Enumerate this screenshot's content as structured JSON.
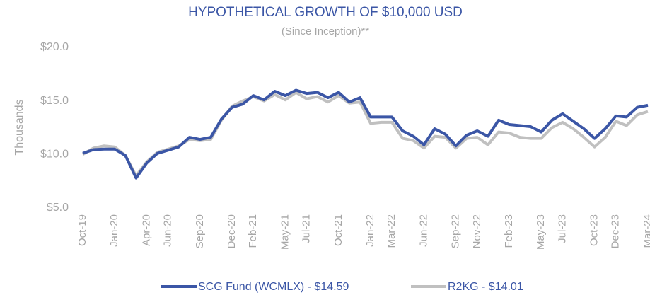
{
  "chart_data": {
    "type": "line",
    "title": "HYPOTHETICAL  GROWTH  OF $10,000  USD",
    "subtitle": "(Since Inception)**",
    "y_label": "Thousands",
    "categories": [
      "Oct-19",
      null,
      null,
      "Jan-20",
      null,
      null,
      "Apr-20",
      null,
      "Jun-20",
      null,
      null,
      "Sep-20",
      null,
      null,
      "Dec-20",
      null,
      "Feb-21",
      null,
      null,
      "May-21",
      null,
      "Jul-21",
      null,
      null,
      "Oct-21",
      null,
      null,
      "Jan-22",
      null,
      "Mar-22",
      null,
      null,
      "Jun-22",
      null,
      null,
      "Sep-22",
      null,
      "Nov-22",
      null,
      null,
      "Feb-23",
      null,
      null,
      "May-23",
      null,
      "Jul-23",
      null,
      null,
      "Oct-23",
      null,
      "Dec-23",
      null,
      null,
      "Mar-24"
    ],
    "series": [
      {
        "name": "SCG Fund (WCMLX) - $14.59",
        "color": "#3b56a6",
        "values": [
          10.1,
          10.45,
          10.5,
          10.5,
          9.9,
          7.8,
          9.2,
          10.1,
          10.4,
          10.7,
          11.6,
          11.4,
          11.6,
          13.3,
          14.4,
          14.7,
          15.5,
          15.1,
          15.9,
          15.5,
          16.0,
          15.7,
          15.8,
          15.3,
          15.8,
          14.9,
          15.3,
          13.5,
          13.5,
          13.5,
          12.2,
          11.7,
          10.9,
          12.4,
          11.9,
          10.8,
          11.8,
          12.2,
          11.7,
          13.2,
          12.8,
          12.7,
          12.6,
          12.1,
          13.2,
          13.8,
          13.1,
          12.4,
          11.5,
          12.4,
          13.6,
          13.5,
          14.4,
          14.59
        ]
      },
      {
        "name": "R2KG - $14.01",
        "color": "#c0c0c0",
        "values": [
          10.0,
          10.6,
          10.8,
          10.7,
          9.9,
          8.0,
          9.3,
          10.2,
          10.5,
          10.8,
          11.4,
          11.3,
          11.4,
          13.2,
          14.5,
          15.0,
          15.4,
          15.0,
          15.6,
          15.1,
          15.8,
          15.2,
          15.4,
          14.9,
          15.5,
          14.8,
          14.9,
          12.9,
          13.0,
          13.0,
          11.5,
          11.3,
          10.6,
          11.7,
          11.6,
          10.6,
          11.5,
          11.6,
          10.9,
          12.1,
          12.0,
          11.6,
          11.5,
          11.5,
          12.5,
          13.0,
          12.4,
          11.6,
          10.7,
          11.6,
          13.1,
          12.7,
          13.7,
          14.01
        ]
      }
    ],
    "ylim": [
      5,
      20
    ],
    "yticks": [
      {
        "value": 5,
        "label": "$5.0"
      },
      {
        "value": 10,
        "label": "$10.0"
      },
      {
        "value": 15,
        "label": "$15.0"
      },
      {
        "value": 20,
        "label": "$20.0"
      }
    ],
    "grid": false,
    "legend": "bottom"
  }
}
